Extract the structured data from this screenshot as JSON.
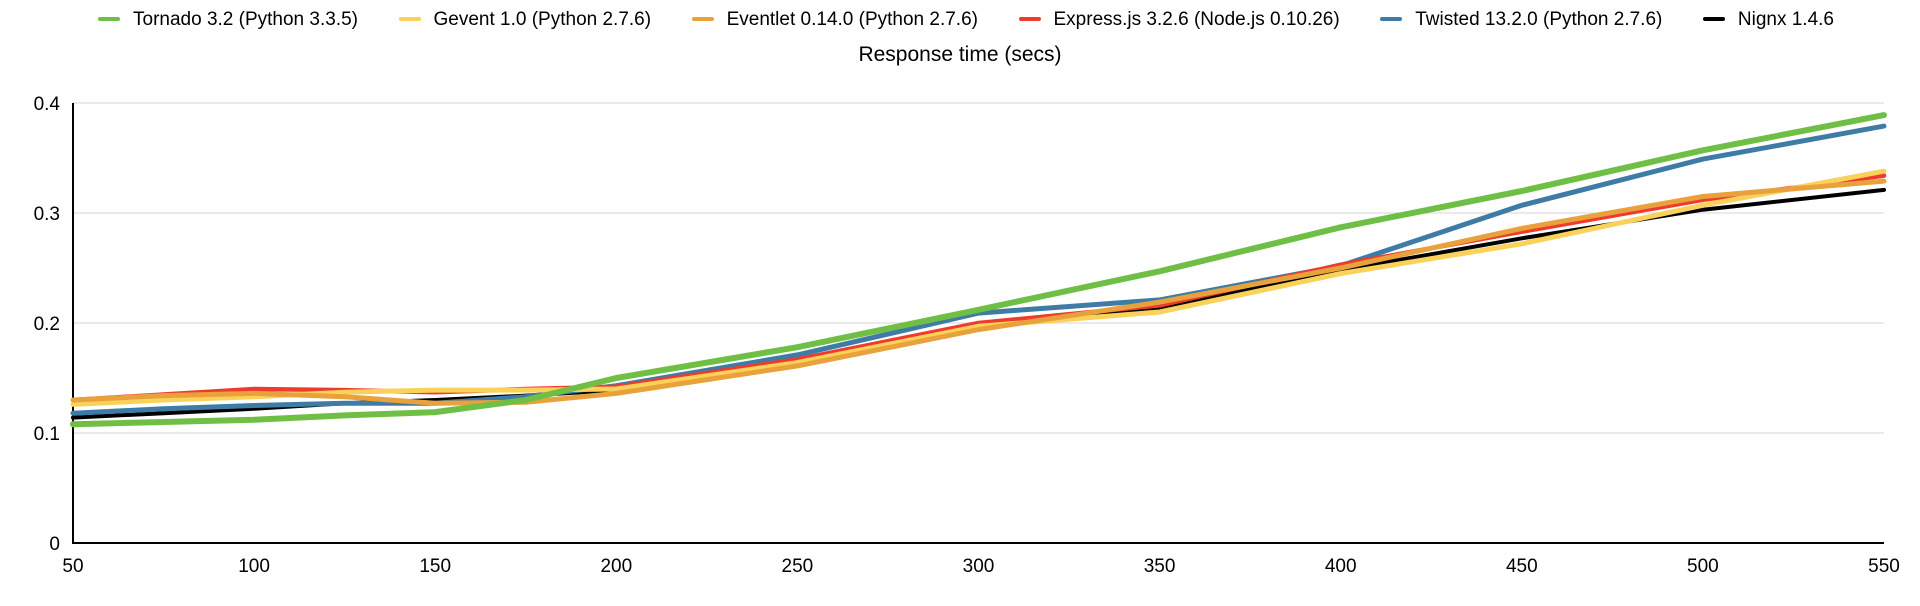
{
  "chart_data": {
    "type": "line",
    "title": "Response time (secs)",
    "xlabel": "",
    "ylabel": "",
    "xlim": [
      50,
      550
    ],
    "ylim": [
      0,
      0.4
    ],
    "x_ticks": [
      50,
      100,
      150,
      200,
      250,
      300,
      350,
      400,
      450,
      500,
      550
    ],
    "y_ticks": [
      0,
      0.1,
      0.2,
      0.3,
      0.4
    ],
    "y_tick_labels": [
      "0",
      "0.1",
      "0.2",
      "0.3",
      "0.4"
    ],
    "grid": true,
    "legend_position": "top",
    "x": [
      50,
      75,
      100,
      125,
      150,
      175,
      200,
      250,
      300,
      350,
      400,
      450,
      500,
      550
    ],
    "series": [
      {
        "name": "Tornado 3.2 (Python 3.3.5)",
        "color": "#6fbf46",
        "stroke_width": 6,
        "values": [
          0.108,
          0.11,
          0.112,
          0.116,
          0.119,
          0.13,
          0.15,
          0.178,
          0.212,
          0.247,
          0.287,
          0.32,
          0.357,
          0.389
        ]
      },
      {
        "name": "Gevent 1.0 (Python 2.7.6)",
        "color": "#fad25a",
        "stroke_width": 5,
        "values": [
          0.126,
          0.13,
          0.133,
          0.137,
          0.139,
          0.139,
          0.14,
          0.164,
          0.197,
          0.21,
          0.245,
          0.272,
          0.307,
          0.338
        ]
      },
      {
        "name": "Eventlet 0.14.0 (Python 2.7.6)",
        "color": "#e9a13c",
        "stroke_width": 5,
        "values": [
          0.13,
          0.134,
          0.136,
          0.133,
          0.127,
          0.128,
          0.136,
          0.161,
          0.194,
          0.219,
          0.25,
          0.286,
          0.315,
          0.329
        ]
      },
      {
        "name": "Express.js 3.2.6 (Node.js 0.10.26)",
        "color": "#ef3b2c",
        "stroke_width": 4.5,
        "values": [
          0.13,
          0.135,
          0.14,
          0.139,
          0.137,
          0.14,
          0.142,
          0.167,
          0.2,
          0.216,
          0.253,
          0.283,
          0.312,
          0.334
        ]
      },
      {
        "name": "Twisted 13.2.0 (Python 2.7.6)",
        "color": "#3e7ca6",
        "stroke_width": 5,
        "values": [
          0.118,
          0.122,
          0.125,
          0.127,
          0.127,
          0.133,
          0.143,
          0.171,
          0.209,
          0.221,
          0.252,
          0.307,
          0.349,
          0.379
        ]
      },
      {
        "name": "Nignx 1.4.6",
        "color": "#000000",
        "stroke_width": 4,
        "values": [
          0.114,
          0.118,
          0.122,
          0.127,
          0.13,
          0.134,
          0.139,
          0.163,
          0.196,
          0.213,
          0.248,
          0.277,
          0.303,
          0.321
        ]
      }
    ],
    "draw_order": [
      5,
      4,
      3,
      1,
      2,
      0
    ]
  }
}
